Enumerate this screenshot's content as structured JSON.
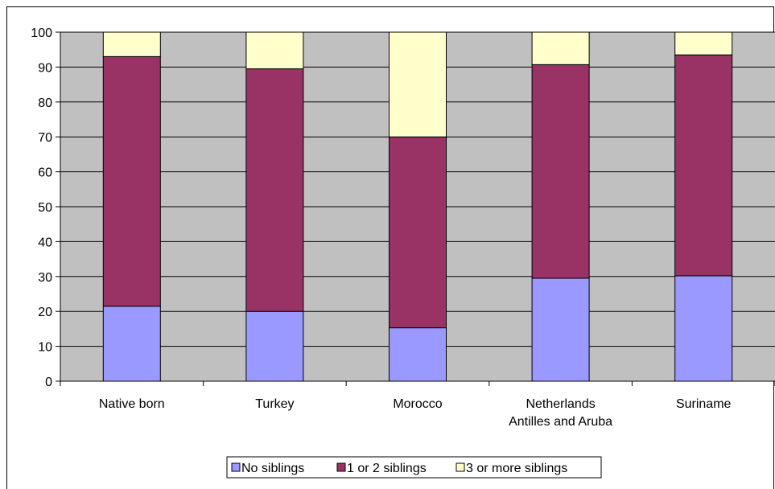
{
  "chart_data": {
    "type": "bar",
    "stacked": true,
    "categories": [
      [
        "Native born"
      ],
      [
        "Turkey"
      ],
      [
        "Morocco"
      ],
      [
        "Netherlands",
        "Antilles and Aruba"
      ],
      [
        "Suriname"
      ]
    ],
    "series": [
      {
        "name": "No siblings",
        "color": "#9999ff",
        "values": [
          21.5,
          20,
          15.3,
          29.5,
          30.2
        ]
      },
      {
        "name": "1 or 2 siblings",
        "color": "#993366",
        "values": [
          71.5,
          69.5,
          54.7,
          61.2,
          63.3
        ]
      },
      {
        "name": "3 or more siblings",
        "color": "#ffffcc",
        "values": [
          7,
          10.5,
          30,
          9.3,
          6.5
        ]
      }
    ],
    "yticks": [
      0,
      10,
      20,
      30,
      40,
      50,
      60,
      70,
      80,
      90,
      100
    ],
    "ylim": [
      0,
      100
    ],
    "grid": true,
    "plot_background": "#c0c0c0",
    "legend_position": "bottom"
  }
}
